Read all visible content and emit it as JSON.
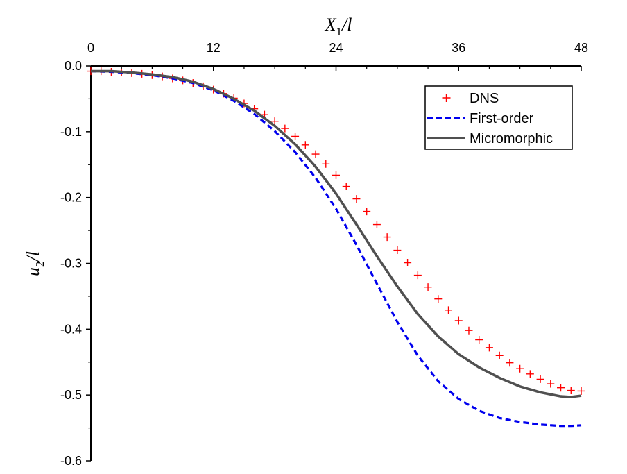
{
  "chart_data": {
    "type": "line",
    "title": "",
    "xlabel": {
      "main": "X",
      "sub": "1",
      "suffix": "/l"
    },
    "ylabel": {
      "main": "u",
      "sub": "2",
      "suffix": "/l"
    },
    "x_axis_position": "top",
    "xlim": [
      0,
      48
    ],
    "ylim": [
      -0.6,
      0.0
    ],
    "xticks": [
      0,
      12,
      24,
      36,
      48
    ],
    "xtick_labels": [
      "0",
      "12",
      "24",
      "36",
      "48"
    ],
    "yticks": [
      0.0,
      -0.1,
      -0.2,
      -0.3,
      -0.4,
      -0.5,
      -0.6
    ],
    "ytick_labels": [
      "0.0",
      "-0.1",
      "-0.2",
      "-0.3",
      "-0.4",
      "-0.5",
      "-0.6"
    ],
    "grid": false,
    "legend_position": "top-right",
    "series": [
      {
        "name": "DNS",
        "style": "markers",
        "marker": "+",
        "color": "#ff0000",
        "x": [
          0,
          1,
          2,
          3,
          4,
          5,
          6,
          7,
          8,
          9,
          10,
          11,
          12,
          13,
          14,
          15,
          16,
          17,
          18,
          19,
          20,
          21,
          22,
          23,
          24,
          25,
          26,
          27,
          28,
          29,
          30,
          31,
          32,
          33,
          34,
          35,
          36,
          37,
          38,
          39,
          40,
          41,
          42,
          43,
          44,
          45,
          46,
          47,
          48
        ],
        "y": [
          -0.008,
          -0.008,
          -0.009,
          -0.01,
          -0.011,
          -0.012,
          -0.014,
          -0.016,
          -0.019,
          -0.022,
          -0.026,
          -0.031,
          -0.036,
          -0.042,
          -0.049,
          -0.057,
          -0.065,
          -0.074,
          -0.084,
          -0.095,
          -0.107,
          -0.12,
          -0.134,
          -0.149,
          -0.166,
          -0.183,
          -0.202,
          -0.221,
          -0.241,
          -0.26,
          -0.28,
          -0.299,
          -0.318,
          -0.336,
          -0.354,
          -0.371,
          -0.387,
          -0.402,
          -0.416,
          -0.428,
          -0.44,
          -0.451,
          -0.46,
          -0.468,
          -0.476,
          -0.483,
          -0.489,
          -0.493,
          -0.494
        ]
      },
      {
        "name": "First-order",
        "style": "dashed",
        "color": "#0000ee",
        "x": [
          0,
          2,
          4,
          6,
          8,
          10,
          12,
          14,
          16,
          18,
          20,
          22,
          24,
          26,
          28,
          30,
          32,
          34,
          36,
          38,
          40,
          42,
          44,
          46,
          47,
          48
        ],
        "y": [
          -0.008,
          -0.009,
          -0.011,
          -0.014,
          -0.019,
          -0.026,
          -0.037,
          -0.053,
          -0.073,
          -0.099,
          -0.131,
          -0.17,
          -0.217,
          -0.272,
          -0.331,
          -0.389,
          -0.44,
          -0.479,
          -0.506,
          -0.524,
          -0.535,
          -0.541,
          -0.545,
          -0.547,
          -0.547,
          -0.546
        ]
      },
      {
        "name": "Micromorphic",
        "style": "solid",
        "color": "#505050",
        "x": [
          0,
          2,
          4,
          6,
          8,
          10,
          12,
          14,
          16,
          18,
          20,
          22,
          24,
          26,
          28,
          30,
          32,
          34,
          36,
          38,
          40,
          42,
          44,
          46,
          47,
          48
        ],
        "y": [
          -0.008,
          -0.008,
          -0.01,
          -0.013,
          -0.017,
          -0.024,
          -0.035,
          -0.05,
          -0.068,
          -0.091,
          -0.119,
          -0.153,
          -0.194,
          -0.241,
          -0.289,
          -0.335,
          -0.377,
          -0.411,
          -0.438,
          -0.458,
          -0.474,
          -0.487,
          -0.496,
          -0.502,
          -0.503,
          -0.501
        ]
      }
    ]
  }
}
